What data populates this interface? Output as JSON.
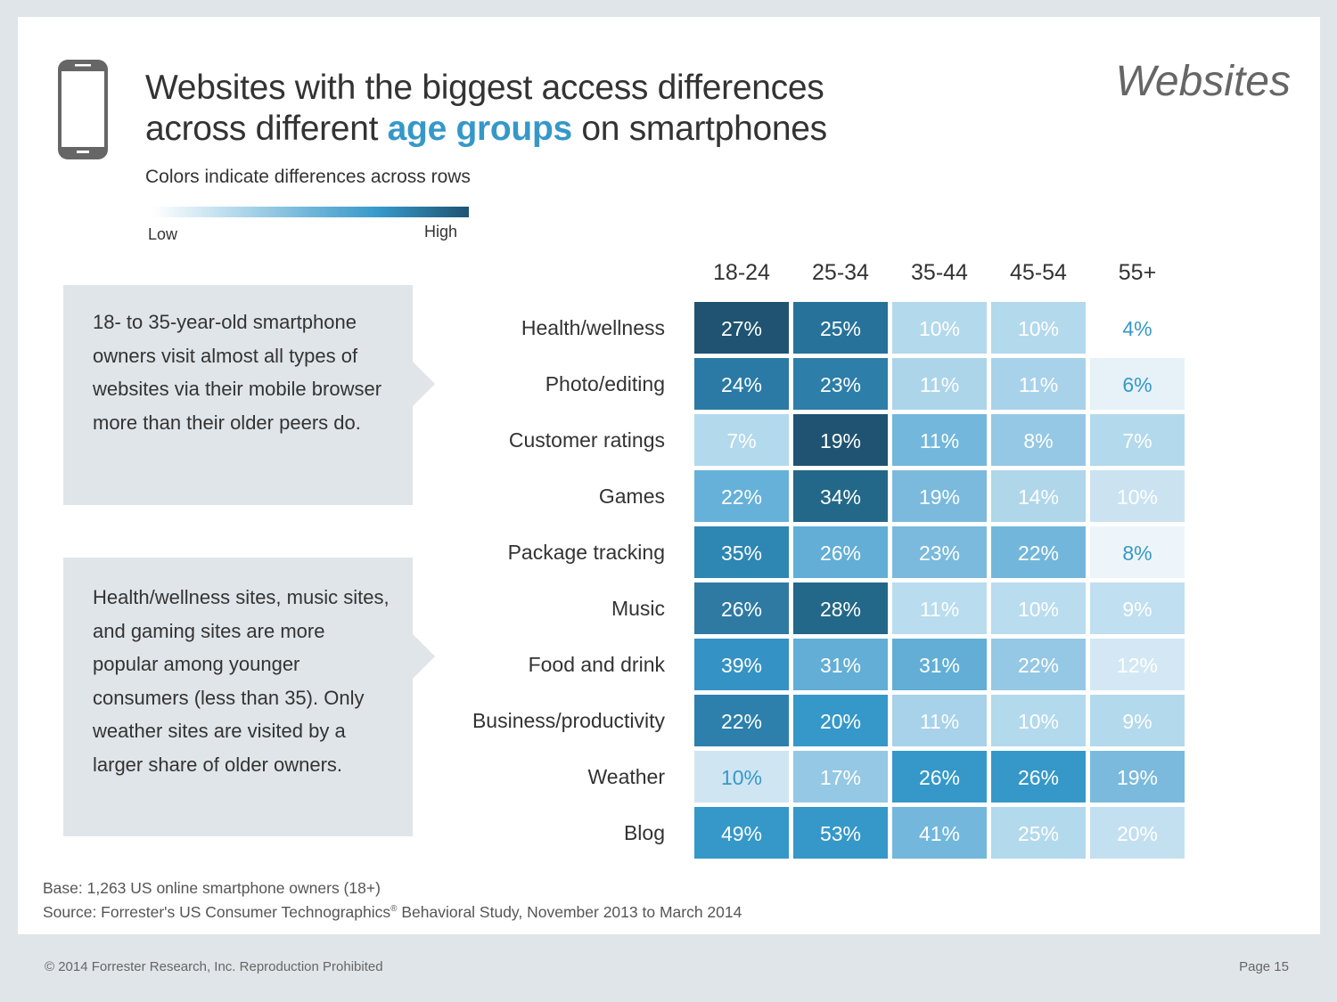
{
  "header": {
    "title_line1": "Websites with the biggest access differences",
    "title_line2_pre": "across different ",
    "title_highlight": "age groups",
    "title_line2_post": " on smartphones",
    "section_label": "Websites",
    "subtitle": "Colors indicate differences across rows",
    "icon": "smartphone-icon"
  },
  "legend": {
    "low_label": "Low",
    "high_label": "High",
    "low_color": "#ffffff",
    "high_color": "#1f5371"
  },
  "callouts": [
    {
      "text": "18- to 35-year-old smartphone owners visit almost all types of websites via their mobile browser more than their older peers do."
    },
    {
      "text": "Health/wellness sites, music sites, and gaming sites are more popular among younger consumers (less than 35). Only weather sites are visited by a larger share of older owners."
    }
  ],
  "colors": {
    "accent": "#3598c9",
    "dark_text_on_light_cell": "#3598c9",
    "cell_text": "#ffffff"
  },
  "chart_data": {
    "type": "heatmap",
    "title": "Websites with the biggest access differences across different age groups on smartphones",
    "subtitle": "Colors indicate differences across rows",
    "columns": [
      "18-24",
      "25-34",
      "35-44",
      "45-54",
      "55+"
    ],
    "rows": [
      "Health/wellness",
      "Photo/editing",
      "Customer ratings",
      "Games",
      "Package tracking",
      "Music",
      "Food and drink",
      "Business/productivity",
      "Weather",
      "Blog"
    ],
    "unit": "%",
    "values": [
      [
        27,
        25,
        10,
        10,
        4
      ],
      [
        24,
        23,
        11,
        11,
        6
      ],
      [
        7,
        19,
        11,
        8,
        7
      ],
      [
        22,
        34,
        19,
        14,
        10
      ],
      [
        35,
        26,
        23,
        22,
        8
      ],
      [
        26,
        28,
        11,
        10,
        9
      ],
      [
        39,
        31,
        31,
        22,
        12
      ],
      [
        22,
        20,
        11,
        10,
        9
      ],
      [
        10,
        17,
        26,
        26,
        19
      ],
      [
        49,
        53,
        41,
        25,
        20
      ]
    ],
    "cell_colors": [
      [
        "#1f5371",
        "#26729a",
        "#b3d9ec",
        "#b3d9ec",
        "#ffffff"
      ],
      [
        "#2a7aa5",
        "#2d7ea8",
        "#add5ea",
        "#a8d2e9",
        "#e6f1f8"
      ],
      [
        "#b3d9ec",
        "#1f5371",
        "#73b7dc",
        "#95c8e4",
        "#b3d9ec"
      ],
      [
        "#66b1d9",
        "#236888",
        "#7bbadc",
        "#b0d6ea",
        "#cbe3f1"
      ],
      [
        "#2e86b3",
        "#62aed6",
        "#7bbadc",
        "#72b7db",
        "#eef5fa"
      ],
      [
        "#2e7aa3",
        "#236888",
        "#b9dcee",
        "#b9dcee",
        "#c0dff0"
      ],
      [
        "#3592c4",
        "#62aed6",
        "#62aed6",
        "#95c8e4",
        "#d3e8f4"
      ],
      [
        "#2c80ab",
        "#3598c9",
        "#a7d2e9",
        "#b3d9ec",
        "#b3d9ec"
      ],
      [
        "#cfe5f2",
        "#95c8e4",
        "#3598c9",
        "#3598c9",
        "#7bbadc"
      ],
      [
        "#3598c9",
        "#3598c9",
        "#73b7dc",
        "#b3d9ec",
        "#c3e0f0"
      ]
    ],
    "dark_label_cells": [
      [
        0,
        4
      ],
      [
        1,
        4
      ],
      [
        4,
        4
      ],
      [
        8,
        0
      ]
    ],
    "legend": {
      "low": "Low",
      "high": "High",
      "placement": "top-left"
    }
  },
  "footer": {
    "base": "Base: 1,263 US online smartphone owners (18+)",
    "source_pre": "Source: Forrester's US Consumer Technographics",
    "source_reg": "®",
    "source_post": " Behavioral Study, November 2013 to March 2014",
    "copyright": "© 2014 Forrester Research, Inc. Reproduction Prohibited",
    "page": "Page 15"
  }
}
